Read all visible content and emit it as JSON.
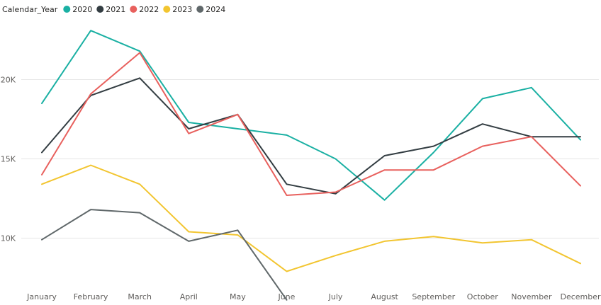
{
  "chart_data": {
    "type": "line",
    "title": "",
    "xlabel": "",
    "ylabel": "",
    "legend": {
      "title": "Calendar_Year",
      "placement": "top-left"
    },
    "categories": [
      "January",
      "February",
      "March",
      "April",
      "May",
      "June",
      "July",
      "August",
      "September",
      "October",
      "November",
      "December"
    ],
    "ylim": [
      6000,
      24000
    ],
    "yticks": [
      10000,
      15000,
      20000
    ],
    "ytick_labels": [
      "10K",
      "15K",
      "20K"
    ],
    "grid": true,
    "series": [
      {
        "name": "2020",
        "color": "#1ab0a3",
        "values": [
          18500,
          23100,
          21800,
          17300,
          16900,
          16500,
          15000,
          12400,
          15400,
          18800,
          19500,
          16200
        ]
      },
      {
        "name": "2021",
        "color": "#333d42",
        "values": [
          15400,
          19000,
          20100,
          16900,
          17800,
          13400,
          12800,
          15200,
          15800,
          17200,
          16400,
          16400
        ]
      },
      {
        "name": "2022",
        "color": "#e8605d",
        "values": [
          14000,
          19100,
          21700,
          16600,
          17800,
          12700,
          12900,
          14300,
          14300,
          15800,
          16400,
          13300
        ]
      },
      {
        "name": "2023",
        "color": "#f2c530",
        "values": [
          13400,
          14600,
          13400,
          10400,
          10200,
          7900,
          8900,
          9800,
          10100,
          9700,
          9900,
          8400
        ]
      },
      {
        "name": "2024",
        "color": "#60686a",
        "values": [
          9900,
          11800,
          11600,
          9800,
          10500,
          6100,
          null,
          null,
          null,
          null,
          null,
          null
        ]
      }
    ]
  }
}
